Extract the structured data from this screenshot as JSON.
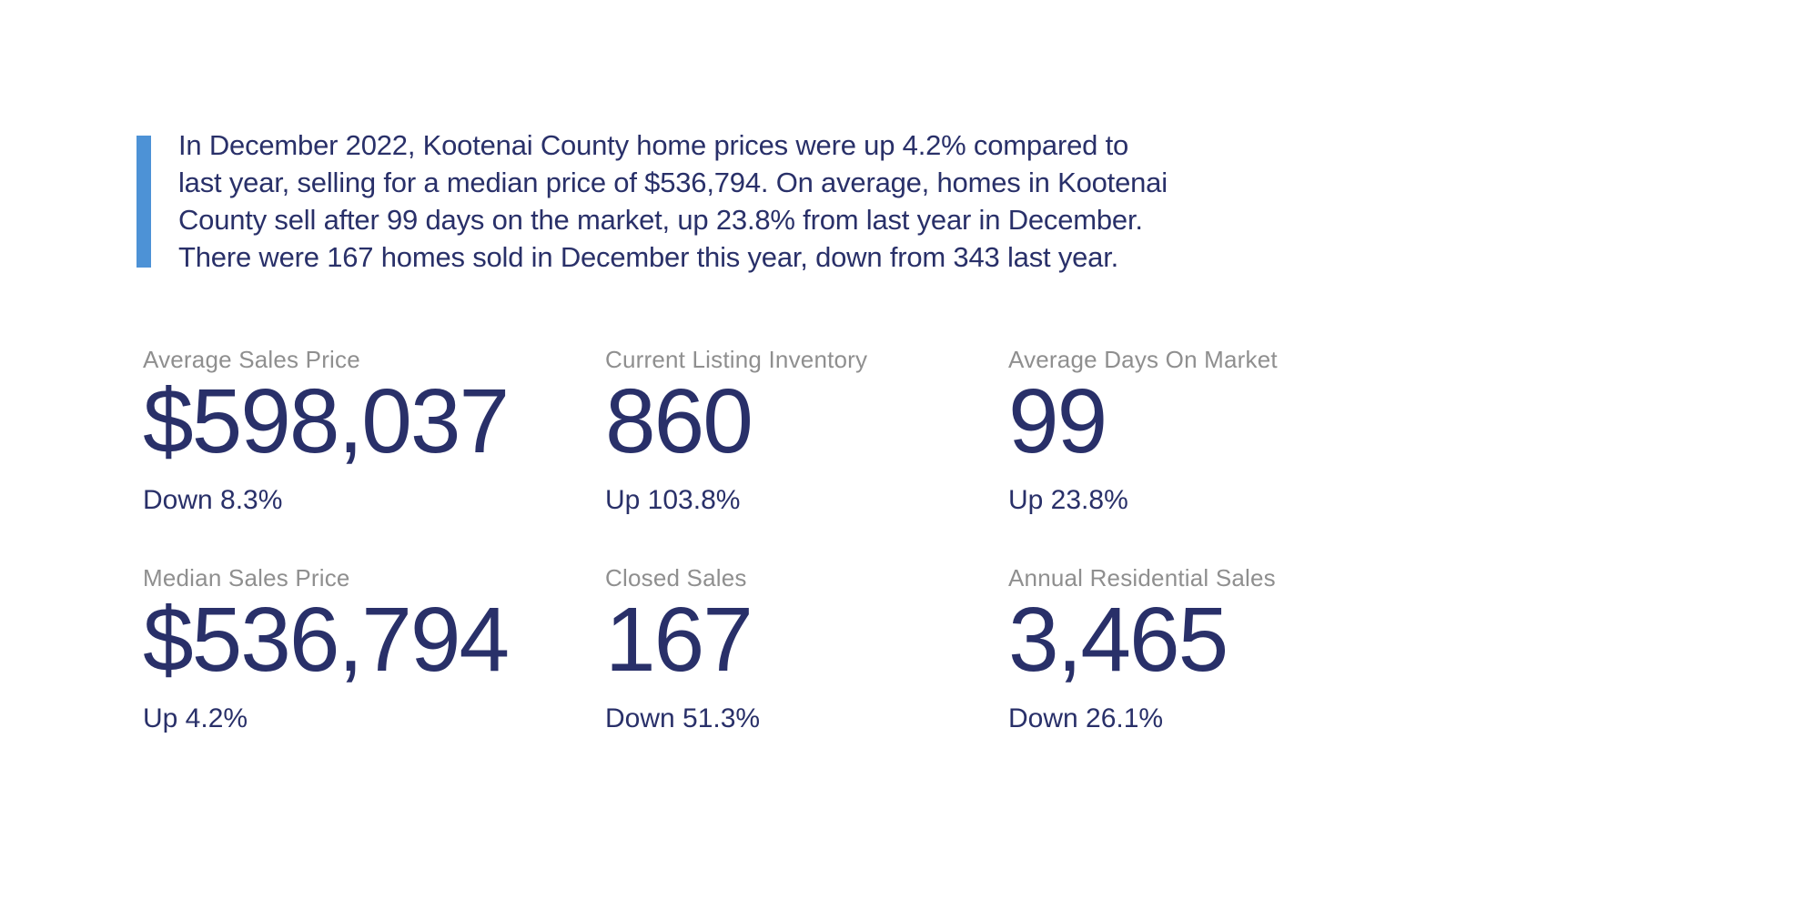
{
  "colors": {
    "navy_text": "#293069",
    "label_gray": "#8f8f8f",
    "accent_blue": "#4d92d6",
    "background": "#ffffff"
  },
  "summary": {
    "lines": [
      "In December 2022, Kootenai County home prices were up 4.2% compared to",
      "last year, selling for a median price of $536,794. On average, homes in Kootenai",
      "County sell after 99 days on the market, up 23.8% from last year in December.",
      "There were 167 homes sold in December this year, down from 343 last year."
    ],
    "full_text": "In December 2022, Kootenai County home prices were up 4.2% compared to last year, selling for a median price of $536,794. On average, homes in Kootenai County sell after 99 days on the market, up 23.8% from last year in December. There were 167 homes sold in December this year, down from 343 last year."
  },
  "stats": [
    {
      "label": "Average Sales Price",
      "value": "$598,037",
      "change": "Down 8.3%",
      "direction": "down"
    },
    {
      "label": "Current Listing Inventory",
      "value": "860",
      "change": "Up 103.8%",
      "direction": "up"
    },
    {
      "label": "Average Days On Market",
      "value": "99",
      "change": "Up 23.8%",
      "direction": "up"
    },
    {
      "label": "Median Sales Price",
      "value": "$536,794",
      "change": "Up 4.2%",
      "direction": "up"
    },
    {
      "label": "Closed Sales",
      "value": "167",
      "change": "Down 51.3%",
      "direction": "down"
    },
    {
      "label": "Annual Residential Sales",
      "value": "3,465",
      "change": "Down 26.1%",
      "direction": "down"
    }
  ]
}
